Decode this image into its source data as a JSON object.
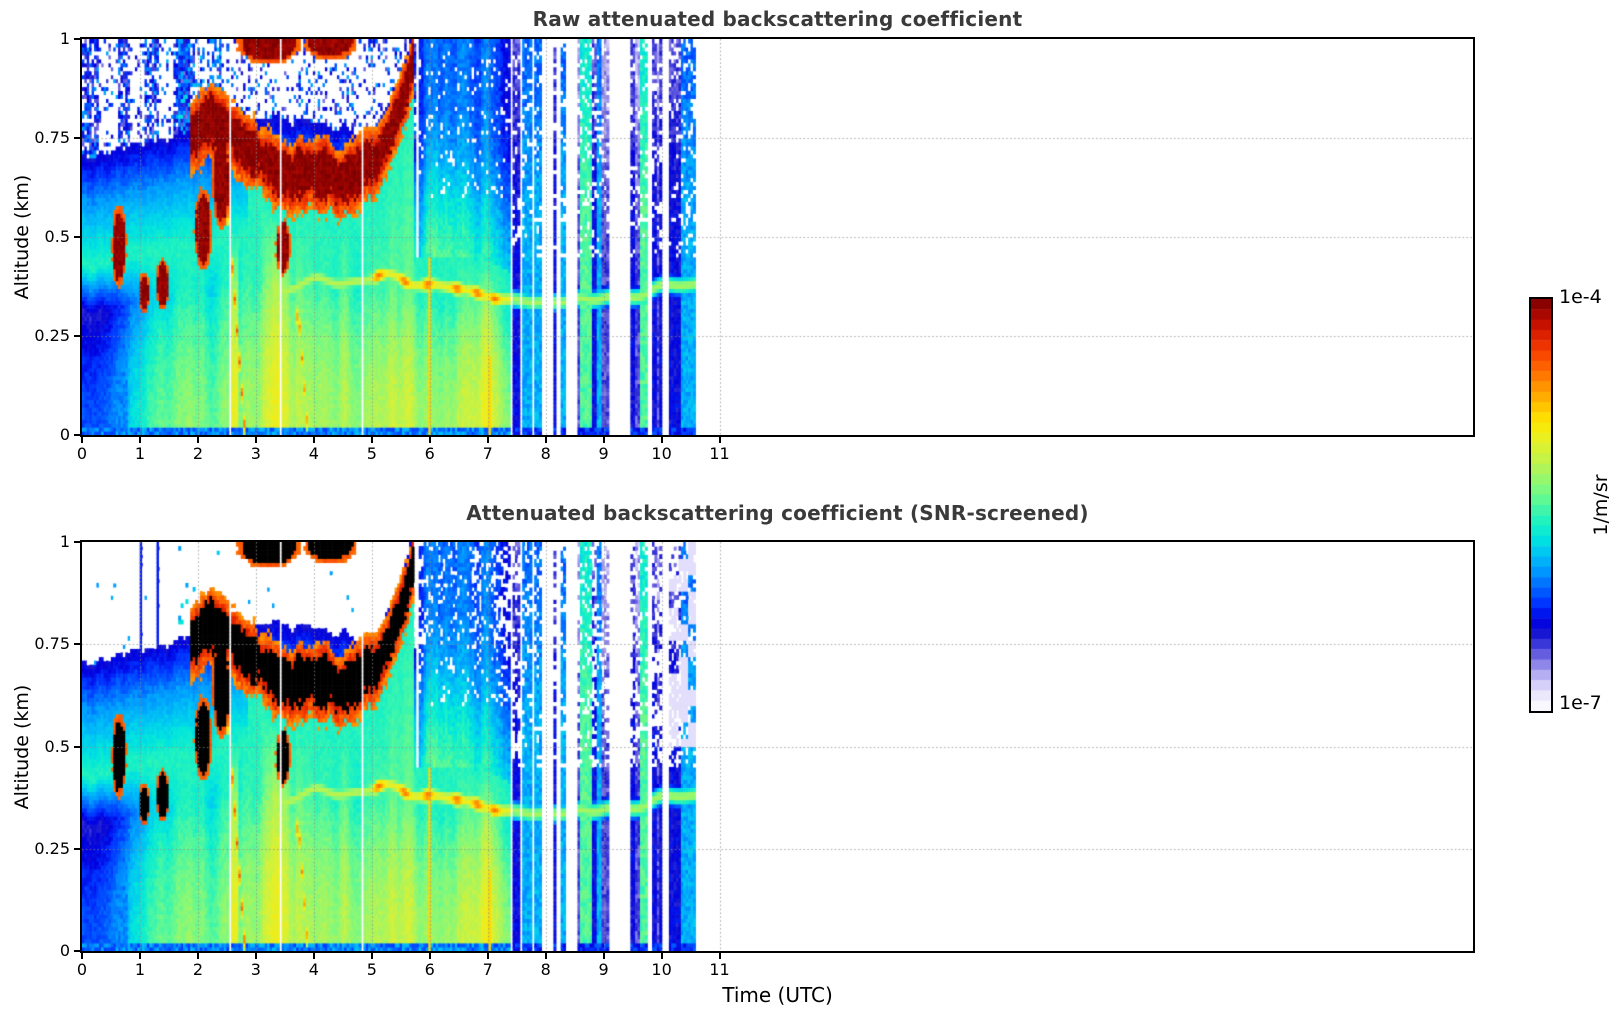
{
  "colors": {
    "background": "#ffffff",
    "title": "#3a3a3a",
    "axis_frame": "#000000",
    "grid": "#8c8c8c",
    "saturated_black": "#000000"
  },
  "chart_data": {
    "type": "heatmap",
    "panels": [
      {
        "title": "Raw attenuated backscattering coefficient",
        "ylabel": "Altitude (km)",
        "screened": false
      },
      {
        "title": "Attenuated backscattering coefficient (SNR-screened)",
        "ylabel": "Altitude (km)",
        "screened": true
      }
    ],
    "xlabel": "Time (UTC)",
    "x_range_hours": [
      0,
      24
    ],
    "x_ticks": [
      0,
      1,
      2,
      3,
      4,
      5,
      6,
      7,
      8,
      9,
      10,
      11
    ],
    "y_range_km": [
      0,
      1
    ],
    "y_ticks": [
      0,
      0.25,
      0.5,
      0.75,
      1
    ],
    "y_tick_labels": [
      "0",
      "0.25",
      "0.5",
      "0.75",
      "1"
    ],
    "grid": {
      "horizontal_at": [
        0.25,
        0.5,
        0.75
      ],
      "vertical_at": [
        1,
        2,
        3,
        4,
        5,
        6,
        7,
        8,
        9,
        10,
        11
      ],
      "style": "dotted"
    },
    "colorbar": {
      "scale": "log",
      "min": 1e-07,
      "max": 0.0001,
      "top_label": "1e-4",
      "bottom_label": "1e-7",
      "unit": "1/m/sr",
      "bands": 40
    },
    "colormap_stops": [
      [
        0.0,
        "#ffffff"
      ],
      [
        0.025,
        "#f3f1fd"
      ],
      [
        0.05,
        "#e2defb"
      ],
      [
        0.075,
        "#c7c1f6"
      ],
      [
        0.1,
        "#a49bee"
      ],
      [
        0.13,
        "#7168e2"
      ],
      [
        0.16,
        "#3d3ad8"
      ],
      [
        0.19,
        "#1414d2"
      ],
      [
        0.22,
        "#0000e0"
      ],
      [
        0.26,
        "#0033ff"
      ],
      [
        0.3,
        "#0066ff"
      ],
      [
        0.34,
        "#0099ff"
      ],
      [
        0.38,
        "#00c3f5"
      ],
      [
        0.42,
        "#00e5de"
      ],
      [
        0.46,
        "#1ff2c0"
      ],
      [
        0.5,
        "#4ff79f"
      ],
      [
        0.54,
        "#7ef97e"
      ],
      [
        0.58,
        "#a8f55e"
      ],
      [
        0.62,
        "#cdf23f"
      ],
      [
        0.66,
        "#e9ef24"
      ],
      [
        0.7,
        "#fce803"
      ],
      [
        0.74,
        "#ffc400"
      ],
      [
        0.78,
        "#ff9b00"
      ],
      [
        0.82,
        "#ff7100"
      ],
      [
        0.86,
        "#fa4a00"
      ],
      [
        0.9,
        "#e62800"
      ],
      [
        0.94,
        "#c51000"
      ],
      [
        0.97,
        "#a00500"
      ],
      [
        1.0,
        "#790000"
      ]
    ],
    "data_end_hour": 10.55,
    "features": {
      "cloud_band_path_t_zkm": [
        [
          1.85,
          0.745
        ],
        [
          2.1,
          0.8
        ],
        [
          2.4,
          0.795
        ],
        [
          2.7,
          0.755
        ],
        [
          3.0,
          0.705
        ],
        [
          3.3,
          0.672
        ],
        [
          3.6,
          0.655
        ],
        [
          4.0,
          0.665
        ],
        [
          4.4,
          0.655
        ],
        [
          4.7,
          0.668
        ],
        [
          5.0,
          0.7
        ],
        [
          5.25,
          0.75
        ],
        [
          5.45,
          0.815
        ],
        [
          5.6,
          0.885
        ],
        [
          5.72,
          0.965
        ]
      ],
      "cloud_band_halfwidth_km": 0.053,
      "cloud_blobs_t0_t1_z0_z1": [
        [
          0.52,
          0.72,
          0.4,
          0.56
        ],
        [
          0.98,
          1.12,
          0.32,
          0.4
        ],
        [
          1.28,
          1.46,
          0.33,
          0.43
        ],
        [
          1.95,
          2.18,
          0.44,
          0.6
        ],
        [
          2.26,
          2.5,
          0.55,
          0.74
        ],
        [
          3.35,
          3.55,
          0.42,
          0.53
        ],
        [
          2.78,
          3.62,
          0.95,
          1.03
        ],
        [
          3.92,
          4.62,
          0.96,
          1.03
        ]
      ],
      "virga_streaks_t0_z0_t1_z1_v": [
        [
          2.5,
          0.56,
          2.78,
          0.03,
          0.85
        ],
        [
          3.72,
          0.3,
          3.86,
          0.04,
          0.8
        ]
      ],
      "orange_updraft_columns_t_z0_z1_v": [
        [
          5.98,
          0.0,
          0.45,
          0.72
        ],
        [
          7.02,
          0.0,
          0.2,
          0.72
        ]
      ],
      "boundary_layer": {
        "t_start": 0.0,
        "t_solid_from": 1.7,
        "t_end": 7.35,
        "top_km_range": [
          0.3,
          0.42
        ]
      },
      "elevated_layer": {
        "t_start": 3.3,
        "t_end": 10.55,
        "z_center_km": 0.38,
        "orange_knots_hours": [
          5.1,
          5.55,
          5.95,
          6.45,
          6.8,
          7.1
        ]
      },
      "white_patches_t0_t1_zmin": [
        [
          0.28,
          0.62,
          0.5
        ],
        [
          0.82,
          1.05,
          0.62
        ],
        [
          1.3,
          1.55,
          0.72
        ]
      ],
      "gap_columns_hours": [
        2.55,
        3.39,
        4.83
      ],
      "post_frontal_stripes": {
        "t_start": 7.35,
        "t_end": 10.55,
        "forced_white_runs": [
          [
            8.35,
            8.5
          ],
          [
            9.2,
            9.42
          ],
          [
            10.0,
            10.08
          ]
        ],
        "forced_green_runs": [
          [
            8.6,
            8.75
          ],
          [
            9.62,
            9.72
          ]
        ]
      },
      "screened_blue_lines_hours": [
        0.98,
        1.27
      ],
      "screened_lavender_patches": {
        "t_start": 10.12,
        "t_end": 10.55,
        "z_min": 0.5
      },
      "surface_band_top_km": 0.022
    },
    "render": {
      "seed": 1337,
      "dt_hours": 0.0415,
      "nz": 100
    }
  }
}
